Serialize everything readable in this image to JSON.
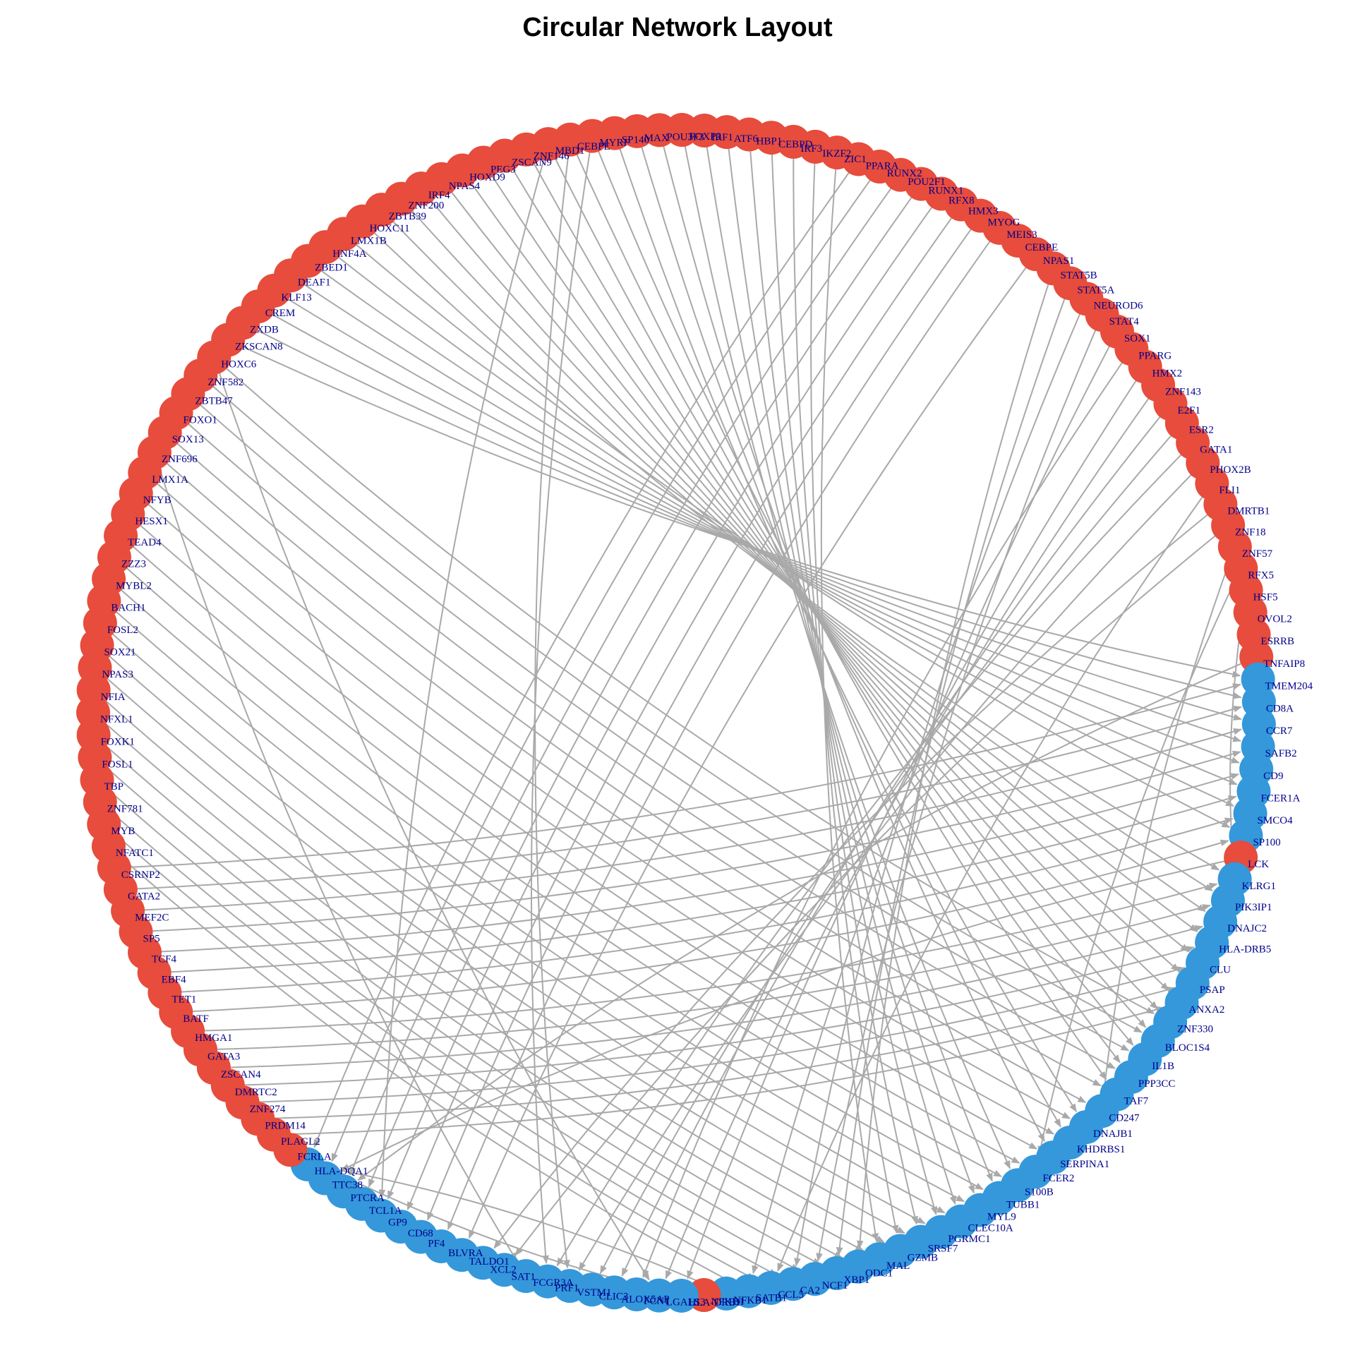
{
  "title": "Circular Network Layout",
  "colors": {
    "tf": "#e74c3c",
    "target": "#3498db",
    "edge": "#a9a9a9",
    "label": "#00008b"
  },
  "nodes": [
    {
      "name": "TNFAIP8",
      "type": "tf"
    },
    {
      "name": "TMEM204",
      "type": "target"
    },
    {
      "name": "CD8A",
      "type": "target"
    },
    {
      "name": "CCR7",
      "type": "target"
    },
    {
      "name": "SAFB2",
      "type": "target"
    },
    {
      "name": "CD9",
      "type": "target"
    },
    {
      "name": "FCER1A",
      "type": "target"
    },
    {
      "name": "SMCO4",
      "type": "target"
    },
    {
      "name": "SP100",
      "type": "target"
    },
    {
      "name": "LCK",
      "type": "tf"
    },
    {
      "name": "KLRG1",
      "type": "target"
    },
    {
      "name": "PIK3IP1",
      "type": "target"
    },
    {
      "name": "DNAJC2",
      "type": "target"
    },
    {
      "name": "HLA-DRB5",
      "type": "target"
    },
    {
      "name": "CLU",
      "type": "target"
    },
    {
      "name": "PSAP",
      "type": "target"
    },
    {
      "name": "ANXA2",
      "type": "target"
    },
    {
      "name": "ZNF330",
      "type": "target"
    },
    {
      "name": "BLOC1S4",
      "type": "target"
    },
    {
      "name": "IL1B",
      "type": "target"
    },
    {
      "name": "PPP3CC",
      "type": "target"
    },
    {
      "name": "TAF7",
      "type": "target"
    },
    {
      "name": "CD247",
      "type": "target"
    },
    {
      "name": "DNAJB1",
      "type": "target"
    },
    {
      "name": "KHDRBS1",
      "type": "target"
    },
    {
      "name": "SERPINA1",
      "type": "target"
    },
    {
      "name": "FCER2",
      "type": "target"
    },
    {
      "name": "S100B",
      "type": "target"
    },
    {
      "name": "TUBB1",
      "type": "target"
    },
    {
      "name": "MYL9",
      "type": "target"
    },
    {
      "name": "CLEC10A",
      "type": "target"
    },
    {
      "name": "PGRMC1",
      "type": "target"
    },
    {
      "name": "SRSF7",
      "type": "target"
    },
    {
      "name": "GZMB",
      "type": "target"
    },
    {
      "name": "MAL",
      "type": "target"
    },
    {
      "name": "ODC1",
      "type": "target"
    },
    {
      "name": "XBP1",
      "type": "target"
    },
    {
      "name": "NCF1",
      "type": "target"
    },
    {
      "name": "CA2",
      "type": "target"
    },
    {
      "name": "CCL5",
      "type": "target"
    },
    {
      "name": "SATB1",
      "type": "target"
    },
    {
      "name": "NFKB1",
      "type": "target"
    },
    {
      "name": "NFKB1",
      "type": "tf"
    },
    {
      "name": "HLA-DRB1",
      "type": "target"
    },
    {
      "name": "LGALS3",
      "type": "target"
    },
    {
      "name": "FCN1",
      "type": "target"
    },
    {
      "name": "ALOX5AP",
      "type": "target"
    },
    {
      "name": "CLIC3",
      "type": "target"
    },
    {
      "name": "VSTM1",
      "type": "target"
    },
    {
      "name": "PRF1",
      "type": "target"
    },
    {
      "name": "FCGR3A",
      "type": "target"
    },
    {
      "name": "SAT1",
      "type": "target"
    },
    {
      "name": "XCL2",
      "type": "target"
    },
    {
      "name": "TALDO1",
      "type": "target"
    },
    {
      "name": "BLVRA",
      "type": "target"
    },
    {
      "name": "PF4",
      "type": "target"
    },
    {
      "name": "CD68",
      "type": "target"
    },
    {
      "name": "GP9",
      "type": "target"
    },
    {
      "name": "TCL1A",
      "type": "target"
    },
    {
      "name": "PTCRA",
      "type": "target"
    },
    {
      "name": "TTC38",
      "type": "target"
    },
    {
      "name": "HLA-DQA1",
      "type": "target"
    },
    {
      "name": "FCRLA",
      "type": "tf"
    },
    {
      "name": "PLAGL2",
      "type": "tf"
    },
    {
      "name": "PRDM14",
      "type": "tf"
    },
    {
      "name": "ZNF274",
      "type": "tf"
    },
    {
      "name": "DMRTC2",
      "type": "tf"
    },
    {
      "name": "ZSCAN4",
      "type": "tf"
    },
    {
      "name": "GATA3",
      "type": "tf"
    },
    {
      "name": "HMGA1",
      "type": "tf"
    },
    {
      "name": "BATF",
      "type": "tf"
    },
    {
      "name": "TET1",
      "type": "tf"
    },
    {
      "name": "EBF4",
      "type": "tf"
    },
    {
      "name": "TCF4",
      "type": "tf"
    },
    {
      "name": "SP5",
      "type": "tf"
    },
    {
      "name": "MEF2C",
      "type": "tf"
    },
    {
      "name": "GATA2",
      "type": "tf"
    },
    {
      "name": "CSRNP2",
      "type": "tf"
    },
    {
      "name": "NFATC1",
      "type": "tf"
    },
    {
      "name": "MYB",
      "type": "tf"
    },
    {
      "name": "ZNF781",
      "type": "tf"
    },
    {
      "name": "TBP",
      "type": "tf"
    },
    {
      "name": "FOSL1",
      "type": "tf"
    },
    {
      "name": "FOXK1",
      "type": "tf"
    },
    {
      "name": "NFXL1",
      "type": "tf"
    },
    {
      "name": "NFIA",
      "type": "tf"
    },
    {
      "name": "NPAS3",
      "type": "tf"
    },
    {
      "name": "SOX21",
      "type": "tf"
    },
    {
      "name": "FOSL2",
      "type": "tf"
    },
    {
      "name": "BACH1",
      "type": "tf"
    },
    {
      "name": "MYBL2",
      "type": "tf"
    },
    {
      "name": "ZZZ3",
      "type": "tf"
    },
    {
      "name": "TEAD4",
      "type": "tf"
    },
    {
      "name": "HESX1",
      "type": "tf"
    },
    {
      "name": "NFYB",
      "type": "tf"
    },
    {
      "name": "LMX1A",
      "type": "tf"
    },
    {
      "name": "ZNF696",
      "type": "tf"
    },
    {
      "name": "SOX13",
      "type": "tf"
    },
    {
      "name": "FOXO1",
      "type": "tf"
    },
    {
      "name": "ZBTB47",
      "type": "tf"
    },
    {
      "name": "ZNF582",
      "type": "tf"
    },
    {
      "name": "HOXC6",
      "type": "tf"
    },
    {
      "name": "ZKSCAN8",
      "type": "tf"
    },
    {
      "name": "ZXDB",
      "type": "tf"
    },
    {
      "name": "CREM",
      "type": "tf"
    },
    {
      "name": "KLF13",
      "type": "tf"
    },
    {
      "name": "DEAF1",
      "type": "tf"
    },
    {
      "name": "ZBED1",
      "type": "tf"
    },
    {
      "name": "HNF4A",
      "type": "tf"
    },
    {
      "name": "LMX1B",
      "type": "tf"
    },
    {
      "name": "HOXC11",
      "type": "tf"
    },
    {
      "name": "ZBTB39",
      "type": "tf"
    },
    {
      "name": "ZNF200",
      "type": "tf"
    },
    {
      "name": "IRF4",
      "type": "tf"
    },
    {
      "name": "NPAS4",
      "type": "tf"
    },
    {
      "name": "HOXD9",
      "type": "tf"
    },
    {
      "name": "PEG3",
      "type": "tf"
    },
    {
      "name": "ZSCAN9",
      "type": "tf"
    },
    {
      "name": "ZNF146",
      "type": "tf"
    },
    {
      "name": "MBD1",
      "type": "tf"
    },
    {
      "name": "CEBPE",
      "type": "tf"
    },
    {
      "name": "MYRF",
      "type": "tf"
    },
    {
      "name": "SP140",
      "type": "tf"
    },
    {
      "name": "MAX",
      "type": "tf"
    },
    {
      "name": "POU3F3",
      "type": "tf"
    },
    {
      "name": "FOXP3",
      "type": "tf"
    },
    {
      "name": "IRF1",
      "type": "tf"
    },
    {
      "name": "ATF6",
      "type": "tf"
    },
    {
      "name": "HBP1",
      "type": "tf"
    },
    {
      "name": "CEBPD",
      "type": "tf"
    },
    {
      "name": "IRF3",
      "type": "tf"
    },
    {
      "name": "IKZF2",
      "type": "tf"
    },
    {
      "name": "ZIC1",
      "type": "tf"
    },
    {
      "name": "PPARA",
      "type": "tf"
    },
    {
      "name": "RUNX2",
      "type": "tf"
    },
    {
      "name": "POU2F1",
      "type": "tf"
    },
    {
      "name": "RUNX1",
      "type": "tf"
    },
    {
      "name": "RFX8",
      "type": "tf"
    },
    {
      "name": "HMX3",
      "type": "tf"
    },
    {
      "name": "MYOG",
      "type": "tf"
    },
    {
      "name": "MEIS3",
      "type": "tf"
    },
    {
      "name": "CEBPE",
      "type": "tf"
    },
    {
      "name": "NPAS1",
      "type": "tf"
    },
    {
      "name": "STAT5B",
      "type": "tf"
    },
    {
      "name": "STAT5A",
      "type": "tf"
    },
    {
      "name": "NEUROD6",
      "type": "tf"
    },
    {
      "name": "STAT4",
      "type": "tf"
    },
    {
      "name": "SOX1",
      "type": "tf"
    },
    {
      "name": "PPARG",
      "type": "tf"
    },
    {
      "name": "HMX2",
      "type": "tf"
    },
    {
      "name": "ZNF143",
      "type": "tf"
    },
    {
      "name": "E2F1",
      "type": "tf"
    },
    {
      "name": "ESR2",
      "type": "tf"
    },
    {
      "name": "GATA1",
      "type": "tf"
    },
    {
      "name": "PHOX2B",
      "type": "tf"
    },
    {
      "name": "FLI1",
      "type": "tf"
    },
    {
      "name": "DMRTB1",
      "type": "tf"
    },
    {
      "name": "ZNF18",
      "type": "tf"
    },
    {
      "name": "ZNF57",
      "type": "tf"
    },
    {
      "name": "RFX5",
      "type": "tf"
    },
    {
      "name": "HSF5",
      "type": "tf"
    },
    {
      "name": "OVOL2",
      "type": "tf"
    },
    {
      "name": "ESRRB",
      "type": "tf"
    }
  ],
  "edges": [
    [
      "ESRRB",
      "TMEM204"
    ],
    [
      "OVOL2",
      "CD9"
    ],
    [
      "HSF5",
      "KLRG1"
    ],
    [
      "RFX5",
      "FCER2"
    ],
    [
      "ZNF57",
      "CD247"
    ],
    [
      "ZNF18",
      "SAT1"
    ],
    [
      "DMRTB1",
      "XCL2"
    ],
    [
      "FLI1",
      "CCL5"
    ],
    [
      "PHOX2B",
      "VSTM1"
    ],
    [
      "GATA1",
      "PRF1"
    ],
    [
      "ESR2",
      "CLIC3"
    ],
    [
      "E2F1",
      "ALOX5AP"
    ],
    [
      "ZNF143",
      "LGALS3"
    ],
    [
      "HMX2",
      "HLA-DRB1"
    ],
    [
      "PPARG",
      "FCN1"
    ],
    [
      "SOX1",
      "SATB1"
    ],
    [
      "STAT4",
      "NCF1"
    ],
    [
      "NEUROD6",
      "CA2"
    ],
    [
      "STAT5A",
      "XBP1"
    ],
    [
      "STAT5B",
      "ODC1"
    ],
    [
      "NPAS1",
      "TALDO1"
    ],
    [
      "MEIS3",
      "BLVRA"
    ],
    [
      "MYOG",
      "PF4"
    ],
    [
      "HMX3",
      "CD68"
    ],
    [
      "RFX8",
      "GP9"
    ],
    [
      "RUNX1",
      "TCL1A"
    ],
    [
      "POU2F1",
      "PTCRA"
    ],
    [
      "RUNX2",
      "TTC38"
    ],
    [
      "PPARA",
      "HLA-DQA1"
    ],
    [
      "ZIC1",
      "MAL"
    ],
    [
      "IKZF2",
      "GZMB"
    ],
    [
      "IRF3",
      "SRSF7"
    ],
    [
      "CEBPD",
      "PGRMC1"
    ],
    [
      "HBP1",
      "CLEC10A"
    ],
    [
      "ATF6",
      "MYL9"
    ],
    [
      "IRF1",
      "TUBB1"
    ],
    [
      "FOXP3",
      "S100B"
    ],
    [
      "POU3F3",
      "SERPINA1"
    ],
    [
      "MAX",
      "KHDRBS1"
    ],
    [
      "SP140",
      "DNAJB1"
    ],
    [
      "MYRF",
      "TAF7"
    ],
    [
      "CEBPE",
      "PPP3CC"
    ],
    [
      "MBD1",
      "IL1B"
    ],
    [
      "ZNF146",
      "BLOC1S4"
    ],
    [
      "ZSCAN9",
      "ZNF330"
    ],
    [
      "PEG3",
      "ANXA2"
    ],
    [
      "HOXD9",
      "PSAP"
    ],
    [
      "NPAS4",
      "CLU"
    ],
    [
      "IRF4",
      "HLA-DRB5"
    ],
    [
      "ZNF200",
      "DNAJC2"
    ],
    [
      "ZBTB39",
      "PIK3IP1"
    ],
    [
      "HOXC11",
      "KLRG1"
    ],
    [
      "LMX1B",
      "SP100"
    ],
    [
      "HNF4A",
      "SMCO4"
    ],
    [
      "ZBED1",
      "FCER1A"
    ],
    [
      "DEAF1",
      "CD9"
    ],
    [
      "KLF13",
      "SAFB2"
    ],
    [
      "CREM",
      "CCR7"
    ],
    [
      "ZXDB",
      "CD8A"
    ],
    [
      "ZKSCAN8",
      "TMEM204"
    ],
    [
      "HOXC6",
      "ZNF330"
    ],
    [
      "ZNF582",
      "BLOC1S4"
    ],
    [
      "ZBTB47",
      "IL1B"
    ],
    [
      "FOXO1",
      "PPP3CC"
    ],
    [
      "SOX13",
      "TAF7"
    ],
    [
      "ZNF696",
      "CD247"
    ],
    [
      "LMX1A",
      "DNAJB1"
    ],
    [
      "NFYB",
      "KHDRBS1"
    ],
    [
      "HESX1",
      "SERPINA1"
    ],
    [
      "TEAD4",
      "FCER2"
    ],
    [
      "ZZZ3",
      "S100B"
    ],
    [
      "MYBL2",
      "TUBB1"
    ],
    [
      "BACH1",
      "MYL9"
    ],
    [
      "FOSL2",
      "CLEC10A"
    ],
    [
      "SOX21",
      "PGRMC1"
    ],
    [
      "NPAS3",
      "SRSF7"
    ],
    [
      "NFIA",
      "GZMB"
    ],
    [
      "NFXL1",
      "MAL"
    ],
    [
      "FOXK1",
      "ODC1"
    ],
    [
      "FOSL1",
      "XBP1"
    ],
    [
      "TBP",
      "NCF1"
    ],
    [
      "ZNF781",
      "CA2"
    ],
    [
      "MYB",
      "CCL5"
    ],
    [
      "NFATC1",
      "SATB1"
    ],
    [
      "CSRNP2",
      "TMEM204"
    ],
    [
      "GATA2",
      "CD8A"
    ],
    [
      "MEF2C",
      "CCR7"
    ],
    [
      "SP5",
      "SAFB2"
    ],
    [
      "TCF4",
      "CD9"
    ],
    [
      "EBF4",
      "FCER1A"
    ],
    [
      "TET1",
      "SMCO4"
    ],
    [
      "BATF",
      "SP100"
    ],
    [
      "HMGA1",
      "KLRG1"
    ],
    [
      "GATA3",
      "PIK3IP1"
    ],
    [
      "ZSCAN4",
      "DNAJC2"
    ],
    [
      "DMRTC2",
      "HLA-DRB5"
    ],
    [
      "ZNF274",
      "CLU"
    ],
    [
      "PRDM14",
      "PSAP"
    ],
    [
      "PLAGL2",
      "ANXA2"
    ],
    [
      "FCRLA",
      "HLA-DRB1"
    ],
    [
      "LCK",
      "TTC38"
    ],
    [
      "NFKB1",
      "HLA-DQA1"
    ],
    [
      "TNFAIP8",
      "PTCRA"
    ],
    [
      "ZNF696",
      "FCGR3A"
    ],
    [
      "MBD1",
      "GP9"
    ],
    [
      "MYRF",
      "PRF1"
    ],
    [
      "CEBPE",
      "VSTM1"
    ],
    [
      "HOXC6",
      "LGALS3"
    ]
  ]
}
